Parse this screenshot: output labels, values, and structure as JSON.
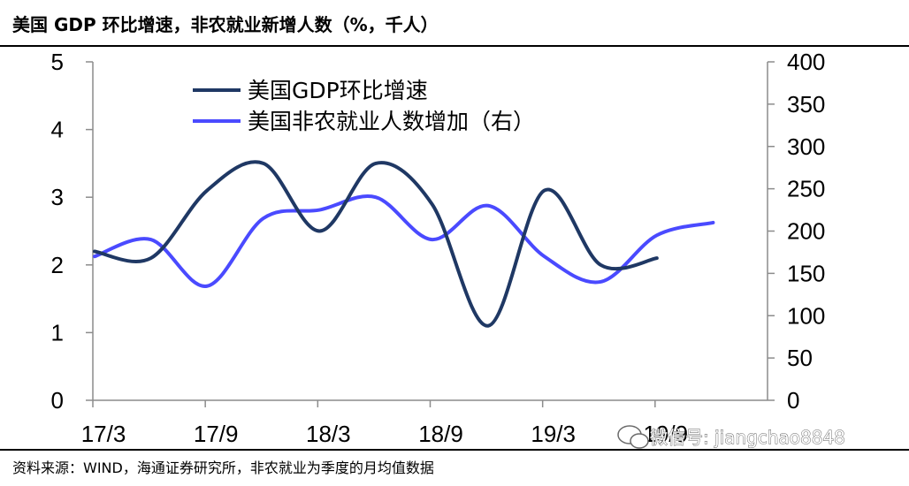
{
  "header": {
    "title": "美国 GDP 环比增速，非农就业新增人数（%，千人）"
  },
  "footer": {
    "source": "资料来源：WIND，海通证券研究所，非农就业为季度的月均值数据"
  },
  "watermark": {
    "text": "微信号: jiangchao8848",
    "icon": "wechat-icon"
  },
  "chart_data": {
    "type": "line",
    "title": "美国 GDP 环比增速，非农就业新增人数（%，千人）",
    "x_tick_labels": [
      "17/3",
      "17/9",
      "18/3",
      "18/9",
      "19/3",
      "19/9"
    ],
    "x": [
      "17/3",
      "17/6",
      "17/9",
      "17/12",
      "18/3",
      "18/6",
      "18/9",
      "18/12",
      "19/3",
      "19/6",
      "19/9",
      "19/12"
    ],
    "left_axis": {
      "ylim": [
        0,
        5
      ],
      "ticks": [
        0,
        1,
        2,
        3,
        4,
        5
      ]
    },
    "right_axis": {
      "ylim": [
        0,
        400
      ],
      "ticks": [
        0,
        50,
        100,
        150,
        200,
        250,
        300,
        350,
        400
      ]
    },
    "series": [
      {
        "name": "美国GDP环比增速",
        "axis": "left",
        "color": "#1f3864",
        "values": [
          2.2,
          2.1,
          3.1,
          3.5,
          2.5,
          3.5,
          2.9,
          1.1,
          3.1,
          2.0,
          2.1,
          null
        ]
      },
      {
        "name": "美国非农就业人数增加（右）",
        "axis": "right",
        "color": "#4a4aff",
        "values": [
          170,
          190,
          135,
          215,
          225,
          240,
          190,
          230,
          170,
          140,
          195,
          210
        ]
      }
    ],
    "legend_position": "top-left"
  }
}
